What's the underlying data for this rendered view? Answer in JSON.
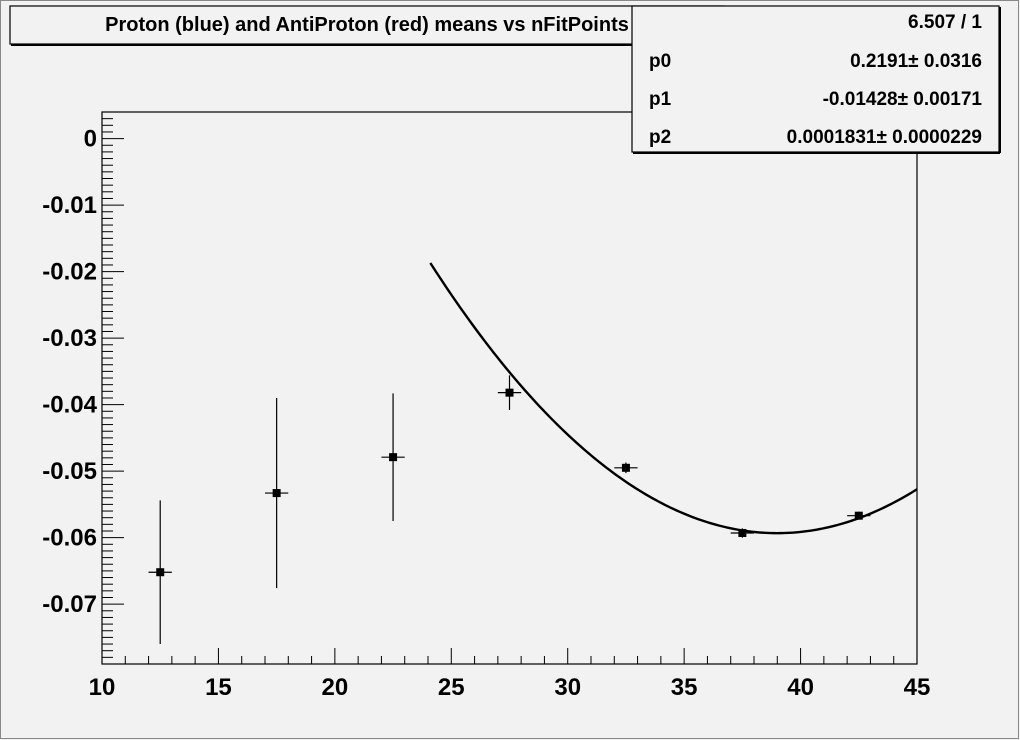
{
  "title": "Proton (blue) and AntiProton (red) means vs nFitPoints",
  "stats": {
    "chi2_ndf": "6.507 / 1",
    "params": [
      {
        "name": "p0",
        "value": "0.2191",
        "error": "0.0316"
      },
      {
        "name": "p1",
        "value": "-0.01428",
        "error": "0.00171"
      },
      {
        "name": "p2",
        "value": "0.0001831",
        "error": "0.0000229"
      }
    ],
    "pm_symbol": "±"
  },
  "chart_data": {
    "type": "scatter",
    "title": "Proton (blue) and AntiProton (red) means vs nFitPoints",
    "xlabel": "",
    "ylabel": "",
    "xlim": [
      10,
      45
    ],
    "ylim": [
      -0.079,
      0.004
    ],
    "x_ticks": [
      10,
      15,
      20,
      25,
      30,
      35,
      40,
      45
    ],
    "x_tick_labels": [
      "10",
      "15",
      "20",
      "25",
      "30",
      "35",
      "40",
      "45"
    ],
    "y_ticks": [
      0,
      -0.01,
      -0.02,
      -0.03,
      -0.04,
      -0.05,
      -0.06,
      -0.07
    ],
    "y_tick_labels": [
      "0",
      "-0.01",
      "-0.02",
      "-0.03",
      "-0.04",
      "-0.05",
      "-0.06",
      "-0.07"
    ],
    "points": [
      {
        "x": 12.5,
        "y": -0.0652,
        "xerr": 0.5,
        "yerr": 0.0108
      },
      {
        "x": 17.5,
        "y": -0.0533,
        "xerr": 0.5,
        "yerr": 0.0143
      },
      {
        "x": 22.5,
        "y": -0.0479,
        "xerr": 0.5,
        "yerr": 0.0096
      },
      {
        "x": 27.5,
        "y": -0.0382,
        "xerr": 0.5,
        "yerr": 0.0026
      },
      {
        "x": 32.5,
        "y": -0.0495,
        "xerr": 0.5,
        "yerr": 0.0008
      },
      {
        "x": 37.5,
        "y": -0.0593,
        "xerr": 0.5,
        "yerr": 0.0007
      },
      {
        "x": 42.5,
        "y": -0.0567,
        "xerr": 0.5,
        "yerr": 0.0006
      }
    ],
    "fit": {
      "function": "pol2",
      "p0": 0.2191,
      "p1": -0.01428,
      "p2": 0.0001831,
      "x_range": [
        24.1,
        45
      ]
    },
    "colors": {
      "marker": "#000000",
      "fit": "#000000",
      "frame": "#000000",
      "background": "#f2f2f2"
    },
    "grid": false,
    "legend": "none"
  }
}
